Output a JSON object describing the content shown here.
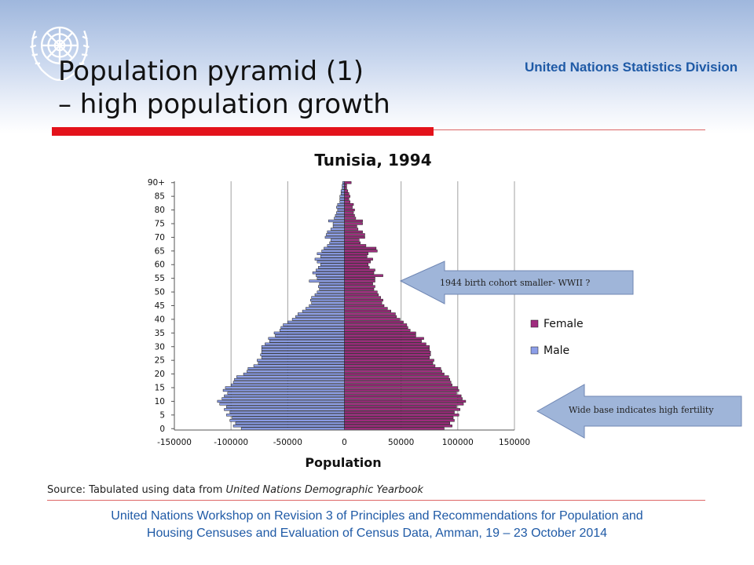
{
  "header": {
    "org_name": "United Nations Statistics Division",
    "title_line_1": "Population pyramid (1)",
    "title_line_2": "– high population growth"
  },
  "colors": {
    "female": "#a02c7f",
    "male": "#8c9ee8",
    "accent_red": "#e3121b",
    "footer_blue": "#1f5aa6",
    "callout_fill": "#9fb5d9"
  },
  "callouts": {
    "wwii": "1944 birth cohort smaller- WWII ?",
    "base": "Wide base indicates high fertility"
  },
  "source": {
    "prefix": "Source: Tabulated using data from ",
    "italic": "United Nations Demographic Yearbook"
  },
  "footer": {
    "line_1": "United Nations Workshop on  Revision 3 of Principles and Recommendations for Population and",
    "line_2": "Housing Censuses and Evaluation of Census Data, Amman, 19 – 23 October 2014"
  },
  "chart_data": {
    "type": "bar",
    "orientation": "horizontal",
    "title": "Tunisia, 1994",
    "xlabel": "Population",
    "ylabel": "",
    "xlim": [
      -150000,
      150000
    ],
    "x_ticks": [
      "-150000",
      "-100000",
      "-50000",
      "0",
      "50000",
      "100000",
      "150000"
    ],
    "y_tick_labels": [
      "0",
      "5",
      "10",
      "15",
      "20",
      "25",
      "30",
      "35",
      "40",
      "45",
      "50",
      "55",
      "60",
      "65",
      "70",
      "75",
      "80",
      "85",
      "90+"
    ],
    "legend_position": "right",
    "categories": [
      "0",
      "1",
      "2",
      "3",
      "4",
      "5",
      "6",
      "7",
      "8",
      "9",
      "10",
      "11",
      "12",
      "13",
      "14",
      "15",
      "16",
      "17",
      "18",
      "19",
      "20",
      "21",
      "22",
      "23",
      "24",
      "25",
      "26",
      "27",
      "28",
      "29",
      "30",
      "31",
      "32",
      "33",
      "34",
      "35",
      "36",
      "37",
      "38",
      "39",
      "40",
      "41",
      "42",
      "43",
      "44",
      "45",
      "46",
      "47",
      "48",
      "49",
      "50",
      "51",
      "52",
      "53",
      "54",
      "55",
      "56",
      "57",
      "58",
      "59",
      "60",
      "61",
      "62",
      "63",
      "64",
      "65",
      "66",
      "67",
      "68",
      "69",
      "70",
      "71",
      "72",
      "73",
      "74",
      "75",
      "76",
      "77",
      "78",
      "79",
      "80",
      "81",
      "82",
      "83",
      "84",
      "85",
      "86",
      "87",
      "88",
      "89",
      "90+"
    ],
    "series": [
      {
        "name": "Female",
        "values": [
          88000,
          95000,
          93000,
          97000,
          96000,
          101000,
          97000,
          102000,
          99000,
          105000,
          107000,
          104000,
          103000,
          99000,
          101000,
          100000,
          95000,
          94000,
          93000,
          92000,
          88000,
          86000,
          85000,
          80000,
          78000,
          79000,
          75000,
          76000,
          76000,
          75000,
          75000,
          72000,
          68000,
          70000,
          63000,
          63000,
          58000,
          56000,
          55000,
          52000,
          49000,
          46000,
          45000,
          41000,
          38000,
          35000,
          33000,
          34000,
          32000,
          30000,
          29000,
          26000,
          27000,
          25000,
          27000,
          27000,
          34000,
          26000,
          27000,
          22000,
          21000,
          23000,
          25000,
          20000,
          21000,
          29000,
          28000,
          19000,
          14000,
          13000,
          18000,
          18000,
          16000,
          12000,
          11000,
          16000,
          16000,
          10000,
          9000,
          8000,
          9000,
          7000,
          8000,
          5000,
          4000,
          5000,
          4000,
          3000,
          2000,
          2000,
          6000
        ]
      },
      {
        "name": "Male",
        "values": [
          -91000,
          -98000,
          -96000,
          -101000,
          -99000,
          -104000,
          -101000,
          -106000,
          -104000,
          -110000,
          -112000,
          -108000,
          -106000,
          -103000,
          -107000,
          -105000,
          -100000,
          -98000,
          -97000,
          -95000,
          -89000,
          -86000,
          -85000,
          -80000,
          -76000,
          -77000,
          -73000,
          -74000,
          -73000,
          -73000,
          -73000,
          -70000,
          -66000,
          -67000,
          -61000,
          -62000,
          -57000,
          -56000,
          -54000,
          -50000,
          -46000,
          -43000,
          -41000,
          -37000,
          -34000,
          -31000,
          -29000,
          -30000,
          -29000,
          -26000,
          -24000,
          -22000,
          -23000,
          -22000,
          -31000,
          -24000,
          -25000,
          -28000,
          -25000,
          -23000,
          -21000,
          -24000,
          -26000,
          -21000,
          -24000,
          -20000,
          -18000,
          -15000,
          -13000,
          -12000,
          -17000,
          -16000,
          -15000,
          -12000,
          -10000,
          -10000,
          -14000,
          -9000,
          -8000,
          -7000,
          -6000,
          -7000,
          -6000,
          -4000,
          -4000,
          -4000,
          -3000,
          -3000,
          -2000,
          -2000,
          -1500
        ]
      }
    ]
  }
}
